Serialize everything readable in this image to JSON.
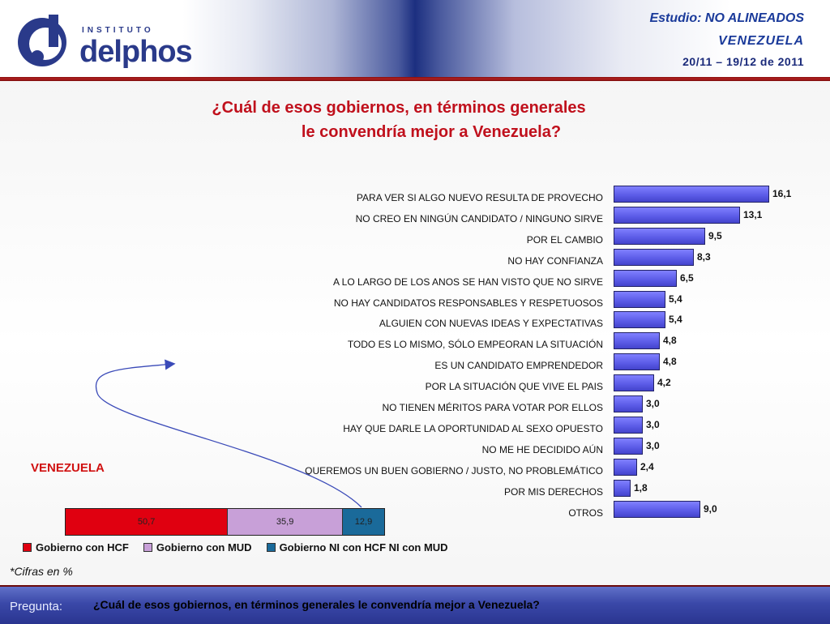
{
  "header": {
    "logo_small_text": "INSTITUTO",
    "logo_name": "delphos",
    "study_prefix": "Estudio:",
    "study_name": "NO ALINEADOS",
    "country": "VENEZUELA",
    "dates": "20/11 – 19/12 de 2011"
  },
  "question": {
    "line1": "¿Cuál de esos  gobiernos, en términos generales",
    "line2": "le convendría mejor a Venezuela?"
  },
  "chart_data": [
    {
      "type": "bar",
      "orientation": "horizontal",
      "categories": [
        "PARA VER SI ALGO NUEVO RESULTA DE PROVECHO",
        "NO CREO EN NINGÚN CANDIDATO / NINGUNO SIRVE",
        "POR EL CAMBIO",
        "NO HAY CONFIANZA",
        "A LO LARGO DE LOS ANOS SE HAN VISTO QUE NO SIRVE",
        "NO HAY CANDIDATOS RESPONSABLES Y RESPETUOSOS",
        "ALGUIEN CON NUEVAS IDEAS Y EXPECTATIVAS",
        "TODO ES LO MISMO, SÓLO EMPEORAN LA SITUACIÓN",
        "ES UN CANDIDATO EMPRENDEDOR",
        "POR LA SITUACIÓN QUE VIVE EL PAIS",
        "NO TIENEN MÉRITOS PARA VOTAR POR ELLOS",
        "HAY QUE DARLE LA OPORTUNIDAD AL SEXO OPUESTO",
        "NO ME HE DECIDIDO AÚN",
        "QUEREMOS UN BUEN GOBIERNO / JUSTO, NO PROBLEMÁTICO",
        "POR MIS DERECHOS",
        "OTROS"
      ],
      "values": [
        16.1,
        13.1,
        9.5,
        8.3,
        6.5,
        5.4,
        5.4,
        4.8,
        4.8,
        4.2,
        3.0,
        3.0,
        3.0,
        2.4,
        1.8,
        9.0
      ],
      "value_labels": [
        "16,1",
        "13,1",
        "9,5",
        "8,3",
        "6,5",
        "5,4",
        "5,4",
        "4,8",
        "4,8",
        "4,2",
        "3,0",
        "3,0",
        "3,0",
        "2,4",
        "1,8",
        "9,0"
      ],
      "xlim": [
        0,
        16.1
      ],
      "bar_color": "#5a5ae6",
      "grid": false
    },
    {
      "type": "bar",
      "orientation": "horizontal",
      "stacked": true,
      "label": "VENEZUELA",
      "series": [
        {
          "name": "Gobierno con HCF",
          "value": 50.7,
          "value_label": "50,7",
          "color": "#e00010"
        },
        {
          "name": "Gobierno con MUD",
          "value": 35.9,
          "value_label": "35,9",
          "color": "#c8a0d8"
        },
        {
          "name": "Gobierno NI con HCF NI con MUD",
          "value": 12.9,
          "value_label": "12,9",
          "color": "#1a6a9a"
        }
      ],
      "legend_position": "bottom"
    }
  ],
  "footnote": "*Cifras en %",
  "footer": {
    "label": "Pregunta:",
    "text": "¿Cuál de esos  gobiernos, en términos generales le convendría mejor a Venezuela?"
  }
}
